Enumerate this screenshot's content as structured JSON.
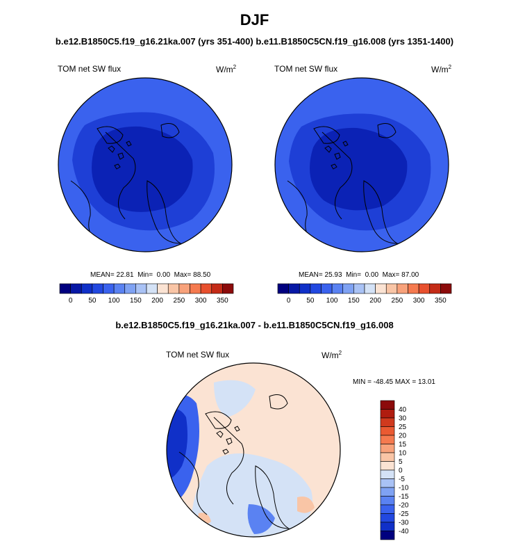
{
  "chart_data": [
    {
      "type": "heatmap",
      "projection": "north-polar-stereographic",
      "title": "DJF",
      "subtitle": "b.e12.B1850C5.f19_g16.21ka.007 (yrs 351-400)",
      "variable": "TOM net SW flux",
      "units": "W/m",
      "units_superscript": "2",
      "stats": {
        "mean_label": "MEAN=",
        "mean": "22.81",
        "min_label": "Min=",
        "min": "0.00",
        "max_label": "Max=",
        "max": "88.50"
      },
      "colorbar": {
        "orientation": "horizontal",
        "levels": [
          0,
          25,
          50,
          75,
          100,
          125,
          150,
          175,
          200,
          225,
          250,
          275,
          300,
          325,
          350
        ],
        "tick_labels": [
          "0",
          "50",
          "100",
          "150",
          "200",
          "250",
          "300",
          "350"
        ],
        "colors": [
          "#00007f",
          "#0718a5",
          "#1030c8",
          "#2248e0",
          "#3a62ee",
          "#5a82f2",
          "#7fa2f3",
          "#a9c2f5",
          "#d4e2f6",
          "#fbe3d3",
          "#f9c5a6",
          "#f8a27b",
          "#f57a4f",
          "#e8502e",
          "#c42b17",
          "#8c0b0b"
        ]
      },
      "zones": [
        {
          "region": "central-arctic",
          "range": [
            0,
            25
          ]
        },
        {
          "region": "middle-ring",
          "range": [
            25,
            50
          ]
        },
        {
          "region": "outer-ring",
          "range": [
            50,
            75
          ]
        }
      ]
    },
    {
      "type": "heatmap",
      "projection": "north-polar-stereographic",
      "subtitle": "b.e11.B1850C5CN.f19_g16.008 (yrs 1351-1400)",
      "variable": "TOM net SW flux",
      "units": "W/m",
      "units_superscript": "2",
      "stats": {
        "mean_label": "MEAN=",
        "mean": "25.93",
        "min_label": "Min=",
        "min": "0.00",
        "max_label": "Max=",
        "max": "87.00"
      },
      "colorbar": {
        "orientation": "horizontal",
        "levels": [
          0,
          25,
          50,
          75,
          100,
          125,
          150,
          175,
          200,
          225,
          250,
          275,
          300,
          325,
          350
        ],
        "tick_labels": [
          "0",
          "50",
          "100",
          "150",
          "200",
          "250",
          "300",
          "350"
        ],
        "colors": [
          "#00007f",
          "#0718a5",
          "#1030c8",
          "#2248e0",
          "#3a62ee",
          "#5a82f2",
          "#7fa2f3",
          "#a9c2f5",
          "#d4e2f6",
          "#fbe3d3",
          "#f9c5a6",
          "#f8a27b",
          "#f57a4f",
          "#e8502e",
          "#c42b17",
          "#8c0b0b"
        ]
      },
      "zones": [
        {
          "region": "central-arctic",
          "range": [
            0,
            25
          ]
        },
        {
          "region": "middle-ring",
          "range": [
            25,
            50
          ]
        },
        {
          "region": "outer-ring",
          "range": [
            50,
            75
          ]
        }
      ]
    },
    {
      "type": "heatmap",
      "projection": "north-polar-stereographic",
      "title": "b.e12.B1850C5.f19_g16.21ka.007 - b.e11.B1850C5CN.f19_g16.008",
      "variable": "TOM net SW flux",
      "units": "W/m",
      "units_superscript": "2",
      "stats": {
        "min_label": "MIN =",
        "min": "-48.45",
        "max_label": "MAX =",
        "max": "13.01"
      },
      "colorbar": {
        "orientation": "vertical",
        "tick_labels": [
          "40",
          "30",
          "25",
          "20",
          "15",
          "10",
          "5",
          "0",
          "-5",
          "-10",
          "-15",
          "-20",
          "-25",
          "-30",
          "-40"
        ],
        "colors": [
          "#8c0b0b",
          "#b01d10",
          "#d03a1e",
          "#ea5a32",
          "#f57a4f",
          "#f8a27b",
          "#f9c5a6",
          "#fbe3d3",
          "#d4e2f6",
          "#a9c2f5",
          "#7fa2f3",
          "#5a82f2",
          "#3a62ee",
          "#2248e0",
          "#1030c8",
          "#00007f"
        ]
      },
      "zones": [
        {
          "region": "most-of-domain",
          "range": [
            0,
            5
          ]
        },
        {
          "region": "arctic-ocean-and-north-atlantic",
          "range": [
            -5,
            0
          ]
        },
        {
          "region": "north-america-ice-sheet-margin",
          "range": [
            -40,
            -10
          ]
        },
        {
          "region": "scattered-patches",
          "range": [
            5,
            10
          ]
        }
      ]
    }
  ]
}
